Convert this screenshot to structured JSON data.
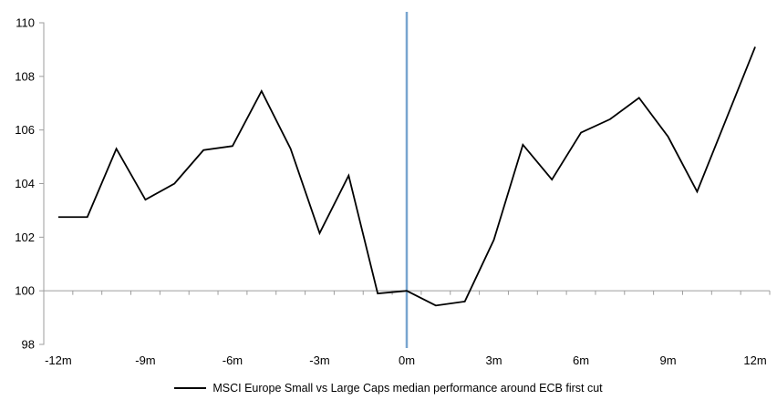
{
  "chart_data": {
    "type": "line",
    "title": "",
    "series_name": "MSCI Europe Small vs Large Caps median performance around ECB first cut",
    "x": [
      -12,
      -11,
      -10,
      -9,
      -8,
      -7,
      -6,
      -5,
      -4,
      -3,
      -2,
      -1,
      0,
      1,
      2,
      3,
      4,
      5,
      6,
      7,
      8,
      9,
      10,
      11,
      12
    ],
    "values": [
      102.75,
      102.75,
      105.3,
      103.4,
      104.0,
      105.25,
      105.4,
      107.45,
      105.3,
      102.15,
      104.3,
      99.9,
      100.0,
      99.45,
      99.6,
      101.9,
      105.45,
      104.15,
      105.9,
      106.4,
      107.2,
      105.75,
      103.7,
      106.4,
      109.1
    ],
    "xlabel": "",
    "ylabel": "",
    "ylim": [
      98,
      110
    ],
    "ytick_values": [
      98,
      100,
      102,
      104,
      106,
      108,
      110
    ],
    "ytick_labels": [
      "98",
      "100",
      "102",
      "104",
      "106",
      "108",
      "110"
    ],
    "xtick_values": [
      -12,
      -9,
      -6,
      -3,
      0,
      3,
      6,
      9,
      12
    ],
    "xtick_labels": [
      "-12m",
      "-9m",
      "-6m",
      "-3m",
      "0m",
      "3m",
      "6m",
      "9m",
      "12m"
    ],
    "x_axis_cross": 100,
    "grid": "none",
    "legend_position": "bottom-center",
    "event_line": {
      "x": 0,
      "color": "#78A5CF"
    },
    "line_color": "#000000",
    "axis_color": "#9D9D9D",
    "background_color": "#FFFFFF"
  }
}
